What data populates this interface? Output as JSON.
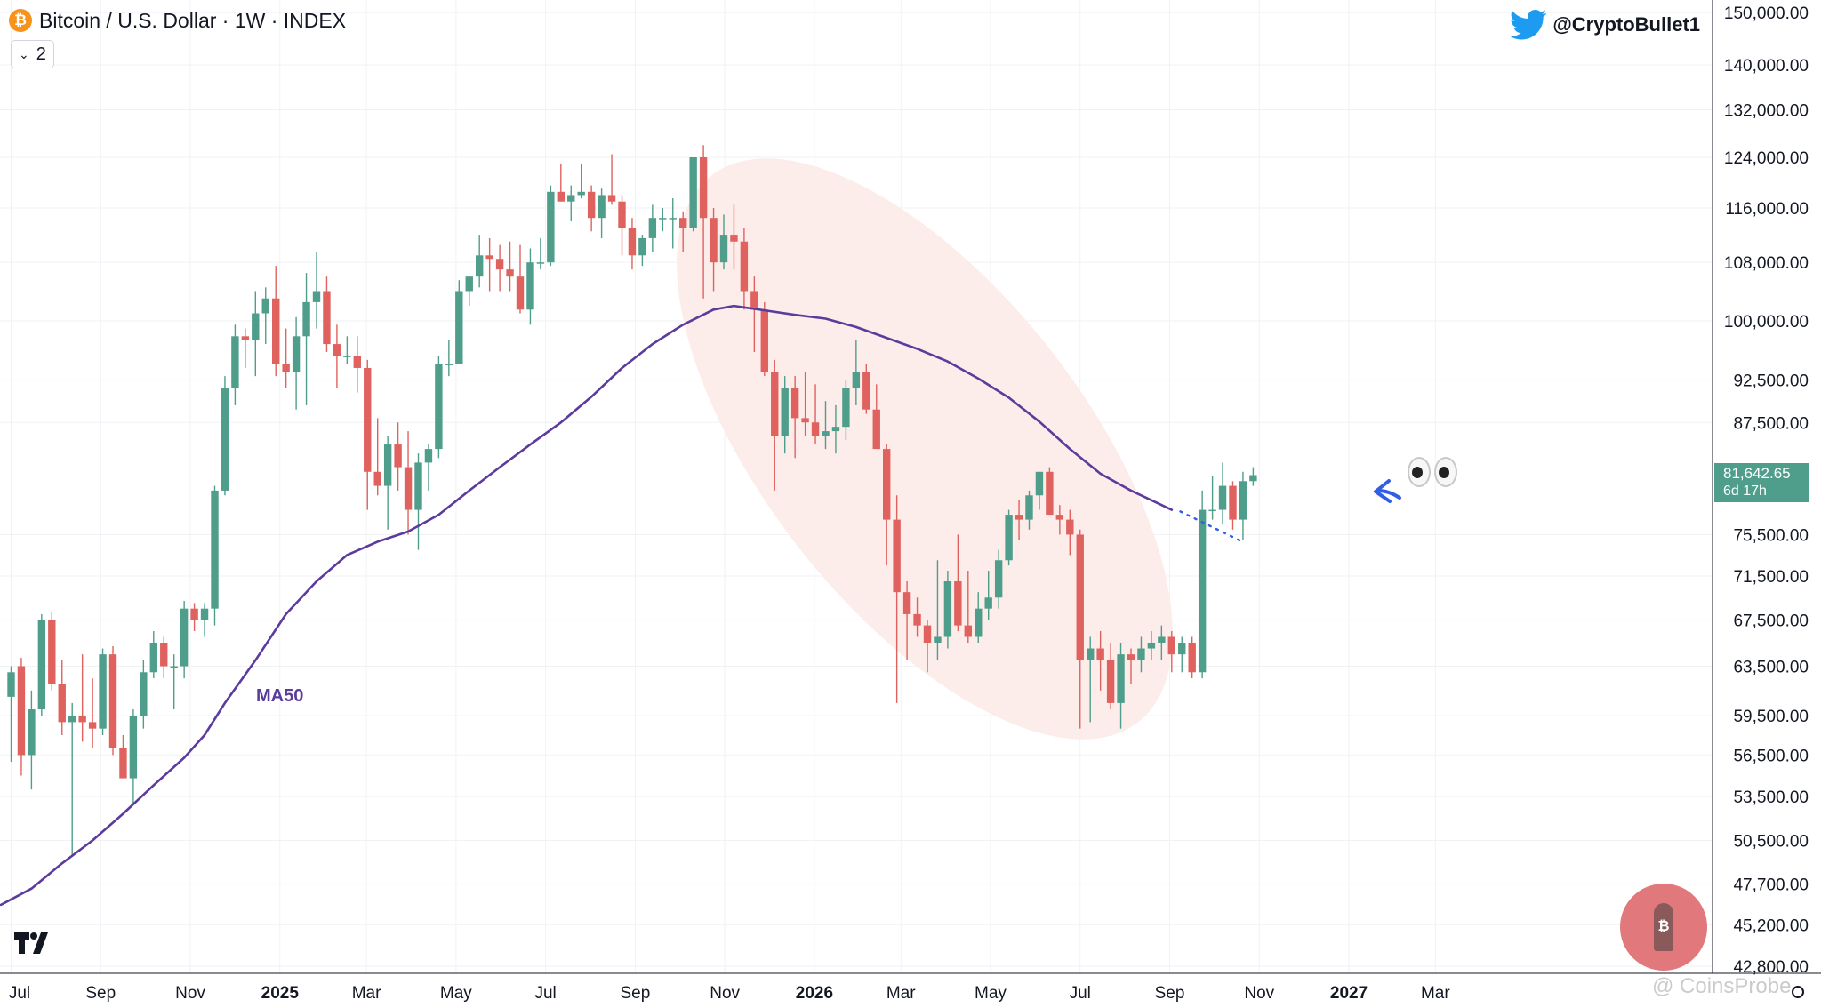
{
  "header": {
    "symbol_icon": "bitcoin-icon",
    "title": "Bitcoin / U.S. Dollar · 1W · INDEX",
    "collapse_count": "2"
  },
  "author": {
    "icon": "twitter-bird-icon",
    "handle": "@CryptoBullet1"
  },
  "price_tag": {
    "price": "81,642.65",
    "countdown": "6d 17h"
  },
  "watermark": "@ CoinsProbe",
  "colors": {
    "up": "#4f9e8b",
    "down": "#e0625f",
    "ma": "#5b3b9c",
    "ellipse": "#fcecea",
    "arrow": "#2e5fe6"
  },
  "chart_data": {
    "type": "candlestick",
    "title": "Bitcoin / U.S. Dollar · 1W · INDEX",
    "ylim": [
      42000,
      152000
    ],
    "y_scale": "log",
    "yticks": [
      {
        "v": 42800,
        "label": "42,800.00"
      },
      {
        "v": 45200,
        "label": "45,200.00"
      },
      {
        "v": 47700,
        "label": "47,700.00"
      },
      {
        "v": 50500,
        "label": "50,500.00"
      },
      {
        "v": 53500,
        "label": "53,500.00"
      },
      {
        "v": 56500,
        "label": "56,500.00"
      },
      {
        "v": 59500,
        "label": "59,500.00"
      },
      {
        "v": 63500,
        "label": "63,500.00"
      },
      {
        "v": 67500,
        "label": "67,500.00"
      },
      {
        "v": 71500,
        "label": "71,500.00"
      },
      {
        "v": 75500,
        "label": "75,500.00"
      },
      {
        "v": 87500,
        "label": "87,500.00"
      },
      {
        "v": 92500,
        "label": "92,500.00"
      },
      {
        "v": 100000,
        "label": "100,000.00"
      },
      {
        "v": 108000,
        "label": "108,000.00"
      },
      {
        "v": 116000,
        "label": "116,000.00"
      },
      {
        "v": 124000,
        "label": "124,000.00"
      },
      {
        "v": 132000,
        "label": "132,000.00"
      },
      {
        "v": 140000,
        "label": "140,000.00"
      },
      {
        "v": 150000,
        "label": "150,000.00"
      }
    ],
    "xticks": [
      {
        "i": 0.0,
        "label": "Jul",
        "bold": false
      },
      {
        "i": 8.8,
        "label": "Sep",
        "bold": false
      },
      {
        "i": 17.6,
        "label": "Nov",
        "bold": false
      },
      {
        "i": 26.4,
        "label": "2025",
        "bold": true
      },
      {
        "i": 34.9,
        "label": "Mar",
        "bold": false
      },
      {
        "i": 43.7,
        "label": "May",
        "bold": false
      },
      {
        "i": 52.5,
        "label": "Jul",
        "bold": false
      },
      {
        "i": 61.3,
        "label": "Sep",
        "bold": false
      },
      {
        "i": 70.1,
        "label": "Nov",
        "bold": false
      },
      {
        "i": 78.9,
        "label": "2026",
        "bold": true
      },
      {
        "i": 87.4,
        "label": "Mar",
        "bold": false
      },
      {
        "i": 96.2,
        "label": "May",
        "bold": false
      },
      {
        "i": 105.0,
        "label": "Jul",
        "bold": false
      },
      {
        "i": 113.8,
        "label": "Sep",
        "bold": false
      },
      {
        "i": 122.6,
        "label": "Nov",
        "bold": false
      },
      {
        "i": 131.4,
        "label": "2027",
        "bold": true
      },
      {
        "i": 139.9,
        "label": "Mar",
        "bold": false
      }
    ],
    "candles": [
      [
        61000,
        63500,
        56000,
        63000
      ],
      [
        63500,
        64200,
        55000,
        56500
      ],
      [
        56500,
        61500,
        54000,
        60000
      ],
      [
        60000,
        68000,
        59500,
        67500
      ],
      [
        67500,
        68200,
        61500,
        62000
      ],
      [
        62000,
        64000,
        58000,
        59000
      ],
      [
        59000,
        60500,
        49500,
        59500
      ],
      [
        59500,
        64500,
        57500,
        59000
      ],
      [
        59000,
        62500,
        57000,
        58500
      ],
      [
        58500,
        65000,
        58000,
        64500
      ],
      [
        64500,
        65200,
        56500,
        57000
      ],
      [
        57000,
        58000,
        55000,
        54800
      ],
      [
        54800,
        60000,
        53000,
        59500
      ],
      [
        59500,
        64000,
        58500,
        63000
      ],
      [
        63000,
        66500,
        62500,
        65500
      ],
      [
        65500,
        66000,
        62500,
        63500
      ],
      [
        63500,
        64500,
        60000,
        63500
      ],
      [
        63500,
        69200,
        62500,
        68500
      ],
      [
        68500,
        69000,
        66500,
        67500
      ],
      [
        67500,
        69000,
        66000,
        68500
      ],
      [
        68500,
        80500,
        67000,
        80000
      ],
      [
        80000,
        93000,
        79500,
        91500
      ],
      [
        91500,
        99500,
        89500,
        98000
      ],
      [
        98000,
        99000,
        94000,
        97500
      ],
      [
        97500,
        104000,
        93000,
        101000
      ],
      [
        101000,
        104500,
        97000,
        103000
      ],
      [
        103000,
        107500,
        93000,
        94500
      ],
      [
        94500,
        99000,
        91500,
        93500
      ],
      [
        93500,
        100500,
        89000,
        98000
      ],
      [
        98000,
        106500,
        89500,
        102500
      ],
      [
        102500,
        109500,
        99000,
        104000
      ],
      [
        104000,
        106000,
        96000,
        97000
      ],
      [
        97000,
        99500,
        91500,
        95500
      ],
      [
        95500,
        98000,
        94500,
        95500
      ],
      [
        95500,
        98000,
        91000,
        94000
      ],
      [
        94000,
        95000,
        78000,
        82000
      ],
      [
        82000,
        88000,
        79500,
        80500
      ],
      [
        80500,
        86000,
        76000,
        85000
      ],
      [
        85000,
        87500,
        80000,
        82500
      ],
      [
        82500,
        86500,
        75500,
        78000
      ],
      [
        78000,
        84000,
        74000,
        83000
      ],
      [
        83000,
        85000,
        80000,
        84500
      ],
      [
        84500,
        95500,
        83500,
        94500
      ],
      [
        94500,
        97500,
        93000,
        94500
      ],
      [
        94500,
        105500,
        94500,
        104000
      ],
      [
        104000,
        106000,
        102000,
        106000
      ],
      [
        106000,
        112000,
        104500,
        109000
      ],
      [
        109000,
        111500,
        104000,
        108500
      ],
      [
        108500,
        110500,
        104000,
        107000
      ],
      [
        107000,
        111000,
        104000,
        106000
      ],
      [
        106000,
        110500,
        101000,
        101500
      ],
      [
        101500,
        110000,
        99500,
        108000
      ],
      [
        108000,
        111500,
        107000,
        108000
      ],
      [
        108000,
        119500,
        107500,
        118500
      ],
      [
        118500,
        123000,
        117000,
        117000
      ],
      [
        117000,
        119500,
        114000,
        118000
      ],
      [
        118000,
        123000,
        117500,
        118500
      ],
      [
        118500,
        119500,
        112500,
        114500
      ],
      [
        114500,
        119000,
        111500,
        118000
      ],
      [
        118000,
        124500,
        116500,
        117000
      ],
      [
        117000,
        118000,
        109000,
        113000
      ],
      [
        113000,
        114500,
        107000,
        109000
      ],
      [
        109000,
        112000,
        107500,
        111500
      ],
      [
        111500,
        116500,
        109500,
        114500
      ],
      [
        114500,
        116000,
        112500,
        114500
      ],
      [
        114500,
        117500,
        110000,
        114500
      ],
      [
        114500,
        115500,
        109500,
        113000
      ],
      [
        113000,
        124000,
        112500,
        124000
      ],
      [
        124000,
        126000,
        103000,
        114500
      ],
      [
        114500,
        116000,
        104000,
        108000
      ],
      [
        108000,
        115000,
        107000,
        112000
      ],
      [
        112000,
        116500,
        107000,
        111000
      ],
      [
        111000,
        113000,
        101500,
        104000
      ],
      [
        104000,
        106000,
        96000,
        101500
      ],
      [
        101500,
        102500,
        93000,
        93500
      ],
      [
        93500,
        95000,
        80000,
        86000
      ],
      [
        86000,
        93000,
        84000,
        91500
      ],
      [
        91500,
        93000,
        83500,
        88000
      ],
      [
        88000,
        93500,
        86000,
        87500
      ],
      [
        87500,
        92000,
        85000,
        86000
      ],
      [
        86000,
        90000,
        84500,
        86500
      ],
      [
        86500,
        89500,
        84000,
        87000
      ],
      [
        87000,
        92500,
        85500,
        91500
      ],
      [
        91500,
        97500,
        89500,
        93500
      ],
      [
        93500,
        94500,
        88500,
        89000
      ],
      [
        89000,
        92000,
        84500,
        84500
      ],
      [
        84500,
        85000,
        72500,
        77000
      ],
      [
        77000,
        79500,
        60500,
        70000
      ],
      [
        70000,
        71000,
        64000,
        68000
      ],
      [
        68000,
        69500,
        66000,
        67000
      ],
      [
        67000,
        67500,
        63000,
        65500
      ],
      [
        65500,
        73000,
        64000,
        66000
      ],
      [
        66000,
        72000,
        65000,
        71000
      ],
      [
        71000,
        75500,
        66500,
        67000
      ],
      [
        67000,
        72000,
        65500,
        66000
      ],
      [
        66000,
        70000,
        65500,
        68500
      ],
      [
        68500,
        72000,
        67500,
        69500
      ],
      [
        69500,
        74000,
        68500,
        73000
      ],
      [
        73000,
        78000,
        72500,
        77500
      ],
      [
        77500,
        79000,
        75000,
        77000
      ],
      [
        77000,
        80000,
        76000,
        79500
      ],
      [
        79500,
        82000,
        78000,
        82000
      ],
      [
        82000,
        82500,
        77500,
        77500
      ],
      [
        77500,
        78500,
        75500,
        77000
      ],
      [
        77000,
        78000,
        73500,
        75500
      ],
      [
        75500,
        76000,
        58500,
        64000
      ],
      [
        64000,
        66000,
        59000,
        65000
      ],
      [
        65000,
        66500,
        61500,
        64000
      ],
      [
        64000,
        65500,
        60000,
        60500
      ],
      [
        60500,
        65500,
        58500,
        64500
      ],
      [
        64500,
        65000,
        62000,
        64000
      ],
      [
        64000,
        66000,
        63000,
        65000
      ],
      [
        65000,
        66500,
        64000,
        65500
      ],
      [
        65500,
        67000,
        64000,
        66000
      ],
      [
        66000,
        66500,
        63000,
        64500
      ],
      [
        64500,
        66000,
        63000,
        65500
      ],
      [
        65500,
        66000,
        62500,
        63000
      ],
      [
        63000,
        80000,
        62500,
        78000
      ],
      [
        78000,
        81500,
        77000,
        78000
      ],
      [
        78000,
        83000,
        76500,
        80500
      ],
      [
        80500,
        81000,
        76000,
        77000
      ],
      [
        77000,
        82000,
        75000,
        81000
      ],
      [
        81000,
        82500,
        80500,
        81642
      ]
    ],
    "ma50_label": "MA50",
    "ma50": [
      [
        -1,
        46400
      ],
      [
        2,
        47400
      ],
      [
        5,
        49000
      ],
      [
        8,
        50500
      ],
      [
        11,
        52300
      ],
      [
        14,
        54300
      ],
      [
        17,
        56300
      ],
      [
        19,
        58000
      ],
      [
        21,
        60500
      ],
      [
        24,
        64000
      ],
      [
        27,
        68000
      ],
      [
        30,
        71000
      ],
      [
        33,
        73500
      ],
      [
        36,
        74800
      ],
      [
        39,
        75800
      ],
      [
        42,
        77500
      ],
      [
        45,
        80000
      ],
      [
        48,
        82500
      ],
      [
        51,
        85000
      ],
      [
        54,
        87500
      ],
      [
        57,
        90500
      ],
      [
        60,
        94000
      ],
      [
        63,
        97000
      ],
      [
        66,
        99500
      ],
      [
        69,
        101500
      ],
      [
        71,
        102000
      ],
      [
        72,
        101800
      ],
      [
        74,
        101400
      ],
      [
        77,
        100800
      ],
      [
        80,
        100300
      ],
      [
        83,
        99200
      ],
      [
        86,
        97800
      ],
      [
        89,
        96400
      ],
      [
        92,
        94800
      ],
      [
        95,
        92700
      ],
      [
        98,
        90400
      ],
      [
        101,
        87600
      ],
      [
        104,
        84500
      ],
      [
        107,
        81800
      ],
      [
        110,
        80000
      ],
      [
        112,
        79000
      ],
      [
        114,
        78000
      ]
    ],
    "projection": [
      [
        114.5,
        78200
      ],
      [
        118.5,
        76300
      ]
    ],
    "arrow_target": [
      114.5,
      79000
    ],
    "highlight_ellipse": {
      "center": [
        85,
        85000
      ],
      "note": "decline zone"
    }
  }
}
